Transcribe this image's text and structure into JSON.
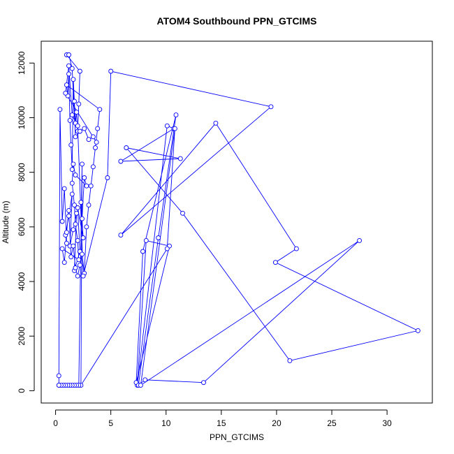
{
  "chart_data": {
    "type": "line",
    "title": "ATOM4 Southbound PPN_GTCIMS",
    "xlabel": "PPN_GTCIMS",
    "ylabel": "Altitude (m)",
    "xlim": [
      -1.3,
      34.1
    ],
    "ylim": [
      -450,
      12800
    ],
    "x_ticks": [
      0,
      5,
      10,
      15,
      20,
      25,
      30
    ],
    "y_ticks": [
      0,
      2000,
      4000,
      6000,
      8000,
      10000,
      12000
    ],
    "grid": false,
    "marker": "open-circle",
    "series_color": "#0000ff",
    "series": [
      {
        "x": [
          0.3,
          0.3,
          0.4,
          0.6,
          0.8,
          1.0,
          0.9,
          1.2,
          1.5,
          1.3,
          1.6,
          1.9,
          1.7,
          2.2,
          2.0,
          2.5,
          2.3,
          2.4,
          2.6,
          2.8,
          1.8,
          1.6,
          1.5,
          1.7,
          1.8,
          2.0,
          2.1,
          0.6,
          0.8,
          1.0,
          1.2,
          1.4,
          1.6,
          1.8,
          2.0,
          2.2,
          2.4,
          2.6,
          2.8,
          3.0,
          3.2,
          3.4,
          3.6,
          3.8,
          4.0,
          1.0,
          1.1,
          1.2,
          1.3,
          1.4,
          1.5,
          1.6,
          1.7,
          1.8,
          1.9,
          2.0,
          2.1,
          2.2,
          1.0,
          1.2,
          1.5,
          1.8,
          2.2,
          2.6,
          3.0,
          3.4,
          3.7,
          0.9,
          1.2,
          1.5,
          2.0,
          2.5,
          4.7,
          5.0,
          19.5,
          5.9,
          14.5,
          21.8,
          19.9,
          32.8,
          21.2,
          11.5,
          6.4,
          11.3,
          5.9,
          10.7,
          10.1,
          7.4,
          8.2,
          10.3,
          7.3,
          7.9,
          10.9,
          9.3,
          7.5,
          8.1,
          13.4,
          27.5,
          7.7,
          10.8,
          10.1,
          2.3,
          2.4,
          2.1,
          1.9,
          1.7,
          1.5,
          1.3,
          1.1,
          0.9,
          0.7,
          0.5,
          0.3
        ],
        "y": [
          200,
          550,
          10300,
          6200,
          7400,
          5400,
          5700,
          6400,
          7200,
          5300,
          5900,
          6500,
          4400,
          5100,
          6700,
          5600,
          6900,
          6300,
          7800,
          7500,
          7900,
          8300,
          7600,
          6800,
          6100,
          5500,
          4800,
          5200,
          4700,
          5800,
          6600,
          4900,
          5300,
          4500,
          4200,
          4600,
          5000,
          4300,
          6000,
          6800,
          7500,
          8200,
          8900,
          9600,
          10300,
          11200,
          10800,
          11600,
          9900,
          9000,
          8100,
          11400,
          10600,
          9800,
          10200,
          9500,
          10500,
          11700,
          12300,
          12300,
          11800,
          9300,
          9500,
          9600,
          9200,
          9300,
          9100,
          10900,
          11900,
          10100,
          9700,
          4200,
          7800,
          11700,
          10400,
          5700,
          9800,
          5200,
          4700,
          2200,
          1100,
          6500,
          8900,
          8500,
          8400,
          9600,
          9700,
          200,
          5500,
          5300,
          300,
          5100,
          10100,
          5600,
          200,
          400,
          300,
          5500,
          200,
          9600,
          5200,
          200,
          8300,
          200,
          200,
          200,
          200,
          200,
          200,
          200,
          200,
          200,
          200
        ]
      }
    ]
  }
}
